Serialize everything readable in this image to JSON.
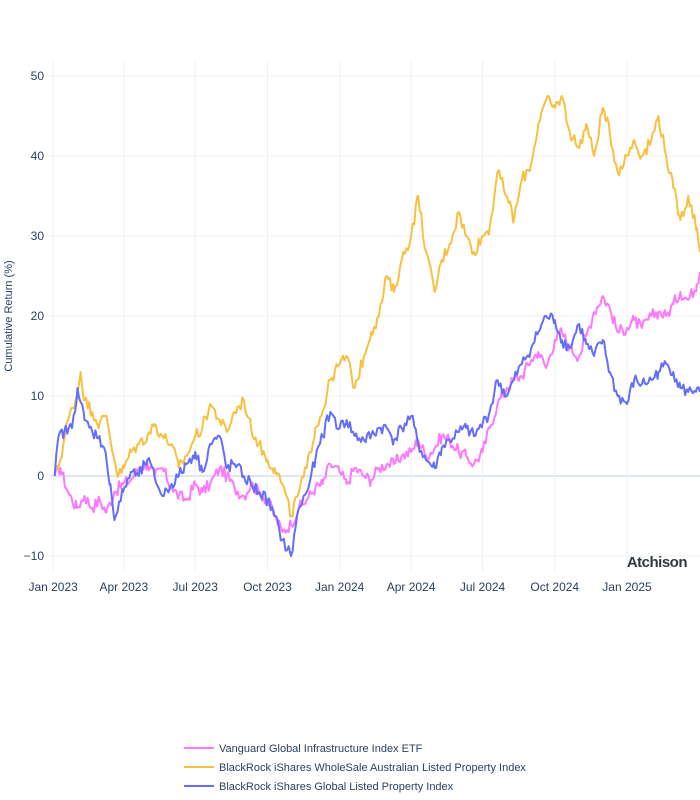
{
  "chart_data": {
    "type": "line",
    "ylabel": "Cumulative Return (%)",
    "xlabel": "",
    "ylim": [
      -12,
      52
    ],
    "xlim": [
      "2022-12-28",
      "2025-04-04"
    ],
    "y_ticks": [
      -10,
      0,
      10,
      20,
      30,
      40,
      50
    ],
    "x_ticks": [
      {
        "date": "2023-01-01",
        "label": "Jan 2023"
      },
      {
        "date": "2023-04-01",
        "label": "Apr 2023"
      },
      {
        "date": "2023-07-01",
        "label": "Jul 2023"
      },
      {
        "date": "2023-10-01",
        "label": "Oct 2023"
      },
      {
        "date": "2024-01-01",
        "label": "Jan 2024"
      },
      {
        "date": "2024-04-01",
        "label": "Apr 2024"
      },
      {
        "date": "2024-07-01",
        "label": "Jul 2024"
      },
      {
        "date": "2024-10-01",
        "label": "Oct 2024"
      },
      {
        "date": "2025-01-01",
        "label": "Jan 2025"
      }
    ],
    "grid": true,
    "legend_position": "bottom",
    "watermark": "Atchison",
    "series": [
      {
        "name": "Vanguard Global Infrastructure Index ETF",
        "color": "#ff77ff",
        "points": [
          [
            "2023-01-03",
            0
          ],
          [
            "2023-01-10",
            1
          ],
          [
            "2023-01-20",
            -2
          ],
          [
            "2023-01-31",
            -4
          ],
          [
            "2023-02-10",
            -2.5
          ],
          [
            "2023-02-20",
            -4
          ],
          [
            "2023-03-01",
            -3
          ],
          [
            "2023-03-10",
            -4.5
          ],
          [
            "2023-03-20",
            -2
          ],
          [
            "2023-03-31",
            -1
          ],
          [
            "2023-04-10",
            -0.5
          ],
          [
            "2023-04-20",
            1
          ],
          [
            "2023-05-01",
            1.5
          ],
          [
            "2023-05-10",
            0
          ],
          [
            "2023-05-20",
            1
          ],
          [
            "2023-06-01",
            -1.5
          ],
          [
            "2023-06-10",
            -2.5
          ],
          [
            "2023-06-20",
            -3
          ],
          [
            "2023-07-01",
            -1
          ],
          [
            "2023-07-10",
            -2
          ],
          [
            "2023-07-20",
            -1
          ],
          [
            "2023-08-01",
            1
          ],
          [
            "2023-08-10",
            0
          ],
          [
            "2023-08-20",
            -1.5
          ],
          [
            "2023-09-01",
            -2.5
          ],
          [
            "2023-09-10",
            -1
          ],
          [
            "2023-09-20",
            -2
          ],
          [
            "2023-10-01",
            -3
          ],
          [
            "2023-10-10",
            -5
          ],
          [
            "2023-10-20",
            -7
          ],
          [
            "2023-10-31",
            -6
          ],
          [
            "2023-11-10",
            -4
          ],
          [
            "2023-11-20",
            -3
          ],
          [
            "2023-12-01",
            -1.5
          ],
          [
            "2023-12-10",
            -1
          ],
          [
            "2023-12-20",
            1.5
          ],
          [
            "2024-01-01",
            0.5
          ],
          [
            "2024-01-10",
            -1
          ],
          [
            "2024-01-20",
            1
          ],
          [
            "2024-02-01",
            0
          ],
          [
            "2024-02-10",
            -0.5
          ],
          [
            "2024-02-20",
            1
          ],
          [
            "2024-03-01",
            1.5
          ],
          [
            "2024-03-10",
            1.5
          ],
          [
            "2024-03-20",
            2.5
          ],
          [
            "2024-04-01",
            3
          ],
          [
            "2024-04-10",
            4.5
          ],
          [
            "2024-04-20",
            2.5
          ],
          [
            "2024-05-01",
            3.5
          ],
          [
            "2024-05-10",
            5
          ],
          [
            "2024-05-20",
            4.5
          ],
          [
            "2024-06-01",
            3
          ],
          [
            "2024-06-10",
            2.5
          ],
          [
            "2024-06-20",
            1.5
          ],
          [
            "2024-07-01",
            3
          ],
          [
            "2024-07-10",
            6
          ],
          [
            "2024-07-20",
            9
          ],
          [
            "2024-08-01",
            11
          ],
          [
            "2024-08-10",
            12
          ],
          [
            "2024-08-20",
            12.5
          ],
          [
            "2024-09-01",
            14.5
          ],
          [
            "2024-09-10",
            15.5
          ],
          [
            "2024-09-20",
            13.5
          ],
          [
            "2024-10-01",
            17
          ],
          [
            "2024-10-10",
            18
          ],
          [
            "2024-10-20",
            16
          ],
          [
            "2024-11-01",
            15
          ],
          [
            "2024-11-10",
            17.5
          ],
          [
            "2024-11-20",
            20.5
          ],
          [
            "2024-12-01",
            22.5
          ],
          [
            "2024-12-10",
            21
          ],
          [
            "2024-12-20",
            18
          ],
          [
            "2025-01-01",
            18.5
          ],
          [
            "2025-01-10",
            19.5
          ],
          [
            "2025-01-20",
            18.5
          ],
          [
            "2025-02-01",
            20
          ],
          [
            "2025-02-10",
            20.5
          ],
          [
            "2025-02-20",
            20
          ],
          [
            "2025-03-01",
            21.5
          ],
          [
            "2025-03-10",
            23
          ],
          [
            "2025-03-20",
            22
          ],
          [
            "2025-03-31",
            24
          ],
          [
            "2025-04-04",
            25.5
          ]
        ]
      },
      {
        "name": "BlackRock iShares WholeSale Australian Listed Property Index",
        "color": "#f8c040",
        "points": [
          [
            "2023-01-03",
            0
          ],
          [
            "2023-01-10",
            2
          ],
          [
            "2023-01-20",
            7
          ],
          [
            "2023-01-31",
            10
          ],
          [
            "2023-02-05",
            13
          ],
          [
            "2023-02-10",
            9.5
          ],
          [
            "2023-02-20",
            8
          ],
          [
            "2023-03-01",
            6.5
          ],
          [
            "2023-03-10",
            7.5
          ],
          [
            "2023-03-20",
            2
          ],
          [
            "2023-03-25",
            0
          ],
          [
            "2023-04-01",
            1
          ],
          [
            "2023-04-10",
            3
          ],
          [
            "2023-04-20",
            4
          ],
          [
            "2023-05-01",
            5
          ],
          [
            "2023-05-10",
            6.5
          ],
          [
            "2023-05-20",
            5
          ],
          [
            "2023-06-01",
            4
          ],
          [
            "2023-06-10",
            1
          ],
          [
            "2023-06-20",
            2.5
          ],
          [
            "2023-07-01",
            5
          ],
          [
            "2023-07-10",
            6
          ],
          [
            "2023-07-20",
            9
          ],
          [
            "2023-08-01",
            7
          ],
          [
            "2023-08-10",
            5.5
          ],
          [
            "2023-08-20",
            8
          ],
          [
            "2023-09-01",
            9.5
          ],
          [
            "2023-09-10",
            6
          ],
          [
            "2023-09-20",
            4
          ],
          [
            "2023-10-01",
            2
          ],
          [
            "2023-10-10",
            1
          ],
          [
            "2023-10-20",
            -1
          ],
          [
            "2023-10-31",
            -5
          ],
          [
            "2023-11-10",
            -2
          ],
          [
            "2023-11-20",
            1
          ],
          [
            "2023-12-01",
            6
          ],
          [
            "2023-12-10",
            8
          ],
          [
            "2023-12-20",
            12
          ],
          [
            "2024-01-01",
            14
          ],
          [
            "2024-01-10",
            15
          ],
          [
            "2024-01-20",
            11
          ],
          [
            "2024-02-01",
            15
          ],
          [
            "2024-02-10",
            18
          ],
          [
            "2024-02-20",
            20
          ],
          [
            "2024-03-01",
            25
          ],
          [
            "2024-03-10",
            23
          ],
          [
            "2024-03-20",
            27
          ],
          [
            "2024-04-01",
            30
          ],
          [
            "2024-04-10",
            35
          ],
          [
            "2024-04-20",
            28
          ],
          [
            "2024-05-01",
            23
          ],
          [
            "2024-05-10",
            27
          ],
          [
            "2024-05-20",
            29
          ],
          [
            "2024-06-01",
            33
          ],
          [
            "2024-06-10",
            30
          ],
          [
            "2024-06-20",
            28
          ],
          [
            "2024-07-01",
            30
          ],
          [
            "2024-07-10",
            31
          ],
          [
            "2024-07-20",
            38
          ],
          [
            "2024-08-01",
            35
          ],
          [
            "2024-08-10",
            32
          ],
          [
            "2024-08-20",
            37
          ],
          [
            "2024-09-01",
            39
          ],
          [
            "2024-09-10",
            44
          ],
          [
            "2024-09-20",
            47
          ],
          [
            "2024-10-01",
            46
          ],
          [
            "2024-10-10",
            47.5
          ],
          [
            "2024-10-20",
            43
          ],
          [
            "2024-11-01",
            41
          ],
          [
            "2024-11-10",
            44
          ],
          [
            "2024-11-20",
            40
          ],
          [
            "2024-12-01",
            46
          ],
          [
            "2024-12-10",
            43
          ],
          [
            "2024-12-20",
            38
          ],
          [
            "2025-01-01",
            40
          ],
          [
            "2025-01-10",
            42
          ],
          [
            "2025-01-20",
            40
          ],
          [
            "2025-02-01",
            42
          ],
          [
            "2025-02-10",
            45
          ],
          [
            "2025-02-20",
            40
          ],
          [
            "2025-03-01",
            36
          ],
          [
            "2025-03-10",
            32
          ],
          [
            "2025-03-20",
            35
          ],
          [
            "2025-03-31",
            31
          ],
          [
            "2025-04-04",
            28
          ]
        ]
      },
      {
        "name": "BlackRock iShares Global Listed Property Index",
        "color": "#636efa",
        "points": [
          [
            "2023-01-03",
            0
          ],
          [
            "2023-01-08",
            5
          ],
          [
            "2023-01-15",
            5.5
          ],
          [
            "2023-01-25",
            6
          ],
          [
            "2023-02-01",
            11
          ],
          [
            "2023-02-10",
            7
          ],
          [
            "2023-02-20",
            5.5
          ],
          [
            "2023-03-01",
            5
          ],
          [
            "2023-03-10",
            2
          ],
          [
            "2023-03-15",
            -1
          ],
          [
            "2023-03-20",
            -5.5
          ],
          [
            "2023-03-31",
            -2
          ],
          [
            "2023-04-10",
            0.5
          ],
          [
            "2023-04-20",
            0
          ],
          [
            "2023-05-01",
            2
          ],
          [
            "2023-05-10",
            0
          ],
          [
            "2023-05-20",
            -2.5
          ],
          [
            "2023-06-01",
            -1
          ],
          [
            "2023-06-10",
            0
          ],
          [
            "2023-06-20",
            1.5
          ],
          [
            "2023-07-01",
            3
          ],
          [
            "2023-07-10",
            0.5
          ],
          [
            "2023-07-20",
            4
          ],
          [
            "2023-08-01",
            5
          ],
          [
            "2023-08-10",
            1
          ],
          [
            "2023-08-20",
            1.5
          ],
          [
            "2023-09-01",
            0
          ],
          [
            "2023-09-10",
            -1
          ],
          [
            "2023-09-20",
            -2
          ],
          [
            "2023-10-01",
            -3
          ],
          [
            "2023-10-10",
            -5
          ],
          [
            "2023-10-20",
            -8
          ],
          [
            "2023-10-31",
            -10
          ],
          [
            "2023-11-10",
            -4
          ],
          [
            "2023-11-20",
            -2
          ],
          [
            "2023-12-01",
            2
          ],
          [
            "2023-12-10",
            5
          ],
          [
            "2023-12-20",
            8
          ],
          [
            "2024-01-01",
            6
          ],
          [
            "2024-01-10",
            7
          ],
          [
            "2024-01-20",
            5
          ],
          [
            "2024-02-01",
            4.5
          ],
          [
            "2024-02-10",
            5
          ],
          [
            "2024-02-20",
            6
          ],
          [
            "2024-03-01",
            6
          ],
          [
            "2024-03-10",
            4.5
          ],
          [
            "2024-03-20",
            6
          ],
          [
            "2024-04-01",
            7.5
          ],
          [
            "2024-04-10",
            4
          ],
          [
            "2024-04-20",
            2
          ],
          [
            "2024-05-01",
            1
          ],
          [
            "2024-05-10",
            3.5
          ],
          [
            "2024-05-20",
            4.5
          ],
          [
            "2024-06-01",
            5.5
          ],
          [
            "2024-06-10",
            6
          ],
          [
            "2024-06-20",
            5
          ],
          [
            "2024-07-01",
            6.5
          ],
          [
            "2024-07-10",
            8
          ],
          [
            "2024-07-20",
            12
          ],
          [
            "2024-08-01",
            10
          ],
          [
            "2024-08-10",
            12
          ],
          [
            "2024-08-20",
            14
          ],
          [
            "2024-09-01",
            16
          ],
          [
            "2024-09-10",
            18
          ],
          [
            "2024-09-20",
            20
          ],
          [
            "2024-10-01",
            19.5
          ],
          [
            "2024-10-10",
            17
          ],
          [
            "2024-10-20",
            16
          ],
          [
            "2024-11-01",
            19
          ],
          [
            "2024-11-10",
            16.5
          ],
          [
            "2024-11-20",
            15
          ],
          [
            "2024-12-01",
            17
          ],
          [
            "2024-12-10",
            13
          ],
          [
            "2024-12-20",
            10
          ],
          [
            "2025-01-01",
            9
          ],
          [
            "2025-01-10",
            12
          ],
          [
            "2025-01-20",
            11.5
          ],
          [
            "2025-02-01",
            12
          ],
          [
            "2025-02-10",
            13
          ],
          [
            "2025-02-20",
            14
          ],
          [
            "2025-03-01",
            13
          ],
          [
            "2025-03-10",
            11
          ],
          [
            "2025-03-20",
            10.5
          ],
          [
            "2025-03-31",
            11
          ],
          [
            "2025-04-04",
            10.5
          ]
        ]
      }
    ]
  }
}
